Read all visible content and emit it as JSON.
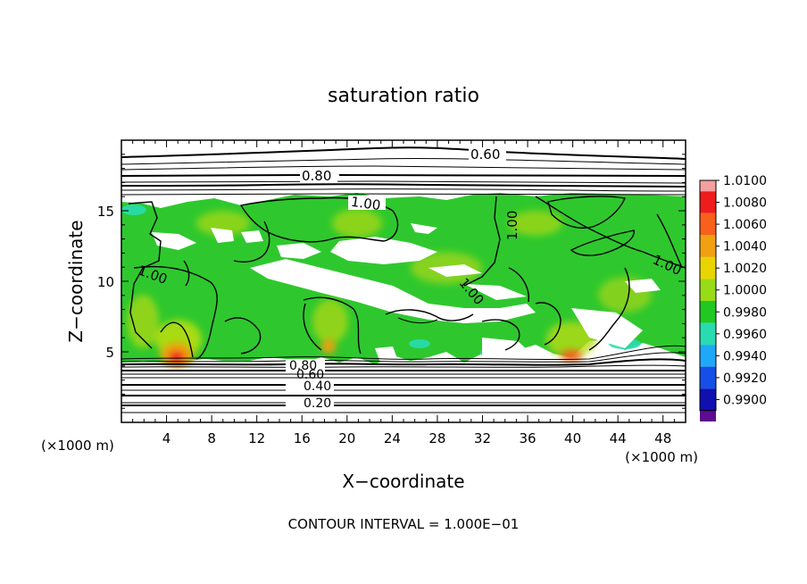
{
  "chart_data": {
    "type": "heatmap",
    "title": "saturation ratio",
    "xlabel": "X−coordinate",
    "ylabel": "Z−coordinate",
    "x_unit_label": "(×1000 m)",
    "y_unit_label": "(×1000 m)",
    "xlim": [
      0,
      50
    ],
    "ylim": [
      0,
      20
    ],
    "x_ticks": [
      4,
      8,
      12,
      16,
      20,
      24,
      28,
      32,
      36,
      40,
      44,
      48
    ],
    "y_ticks": [
      5,
      10,
      15
    ],
    "footer": "CONTOUR INTERVAL = 1.000E−01",
    "colorbar": {
      "min": 0.99,
      "max": 1.01,
      "labels": [
        "1.0100",
        "1.0080",
        "1.0060",
        "1.0040",
        "1.0020",
        "1.0000",
        "0.9980",
        "0.9960",
        "0.9940",
        "0.9920",
        "0.9900"
      ],
      "colors": [
        "#f4a0a0",
        "#ee1c1c",
        "#f8601c",
        "#f0a010",
        "#e8d400",
        "#98dc18",
        "#22c822",
        "#28dcb0",
        "#20a8f8",
        "#1450e8",
        "#1010b0",
        "#5c0c90"
      ]
    },
    "contour_labels": [
      {
        "text": "0.60",
        "x": 27.8,
        "z": 18.8
      },
      {
        "text": "0.80",
        "x": 17.6,
        "z": 17.2
      },
      {
        "text": "1.00",
        "x": 21.7,
        "z": 15.5
      },
      {
        "text": "1.00",
        "x": 33.8,
        "z": 13.3
      },
      {
        "text": "1.00",
        "x": 3.3,
        "z": 10.6
      },
      {
        "text": "1.00",
        "x": 30.5,
        "z": 9.4
      },
      {
        "text": "1.00",
        "x": 47.5,
        "z": 11.1
      },
      {
        "text": "0.80",
        "x": 16.3,
        "z": 4.0
      },
      {
        "text": "0.60",
        "x": 17.2,
        "z": 3.6
      },
      {
        "text": "0.40",
        "x": 17.2,
        "z": 2.6
      },
      {
        "text": "0.20",
        "x": 17.2,
        "z": 1.3
      }
    ],
    "contour_levels_lower": [
      0.2,
      0.4,
      0.6,
      0.8
    ],
    "contour_levels_upper": [
      0.6,
      0.8
    ]
  }
}
